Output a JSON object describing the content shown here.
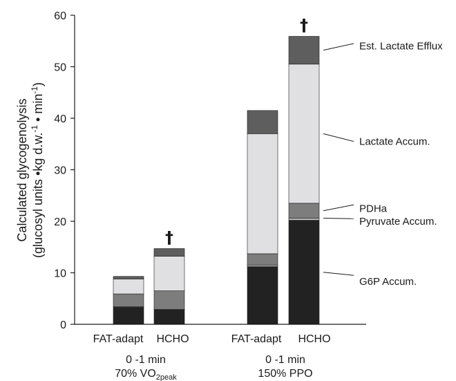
{
  "chart_data": {
    "type": "bar",
    "stacked": true,
    "ylabel_line1": "Calculated glycogenolysis",
    "ylabel_line2_pre": "(glucosyl units •kg d.w.",
    "ylabel_line2_sup1": "-1",
    "ylabel_line2_mid": " • min",
    "ylabel_line2_sup2": "-1",
    "ylabel_line2_post": ")",
    "ylim": [
      0,
      60
    ],
    "yticks": [
      "0",
      "10",
      "20",
      "30",
      "40",
      "50",
      "60"
    ],
    "categories": [
      "FAT-adapt",
      "HCHO",
      "FAT-adapt",
      "HCHO"
    ],
    "groups": [
      {
        "line1": "0 -1 min",
        "line2_pre": "70% VO",
        "line2_sub": "2peak"
      },
      {
        "line1": "0 -1 min",
        "line2": "150% PPO"
      }
    ],
    "series": [
      {
        "name": "G6P Accum.",
        "color": "#222222",
        "values": [
          3.3,
          2.8,
          11.2,
          20.2
        ]
      },
      {
        "name": "Pyruvate Accum.",
        "color": "#b8b8b8",
        "values": [
          0.1,
          0.1,
          0.3,
          0.4
        ]
      },
      {
        "name": "PDHa",
        "color": "#7d7d7d",
        "values": [
          2.5,
          3.6,
          2.2,
          2.9
        ]
      },
      {
        "name": "Lactate Accum.",
        "color": "#e0e0e2",
        "values": [
          2.9,
          6.7,
          23.3,
          27.0
        ]
      },
      {
        "name": "Est. Lactate Efflux",
        "color": "#5e5e5e",
        "values": [
          0.5,
          1.5,
          4.5,
          5.4
        ]
      }
    ],
    "annotations": [
      {
        "text": "†",
        "category_index": 1
      },
      {
        "text": "†",
        "category_index": 3
      }
    ]
  }
}
